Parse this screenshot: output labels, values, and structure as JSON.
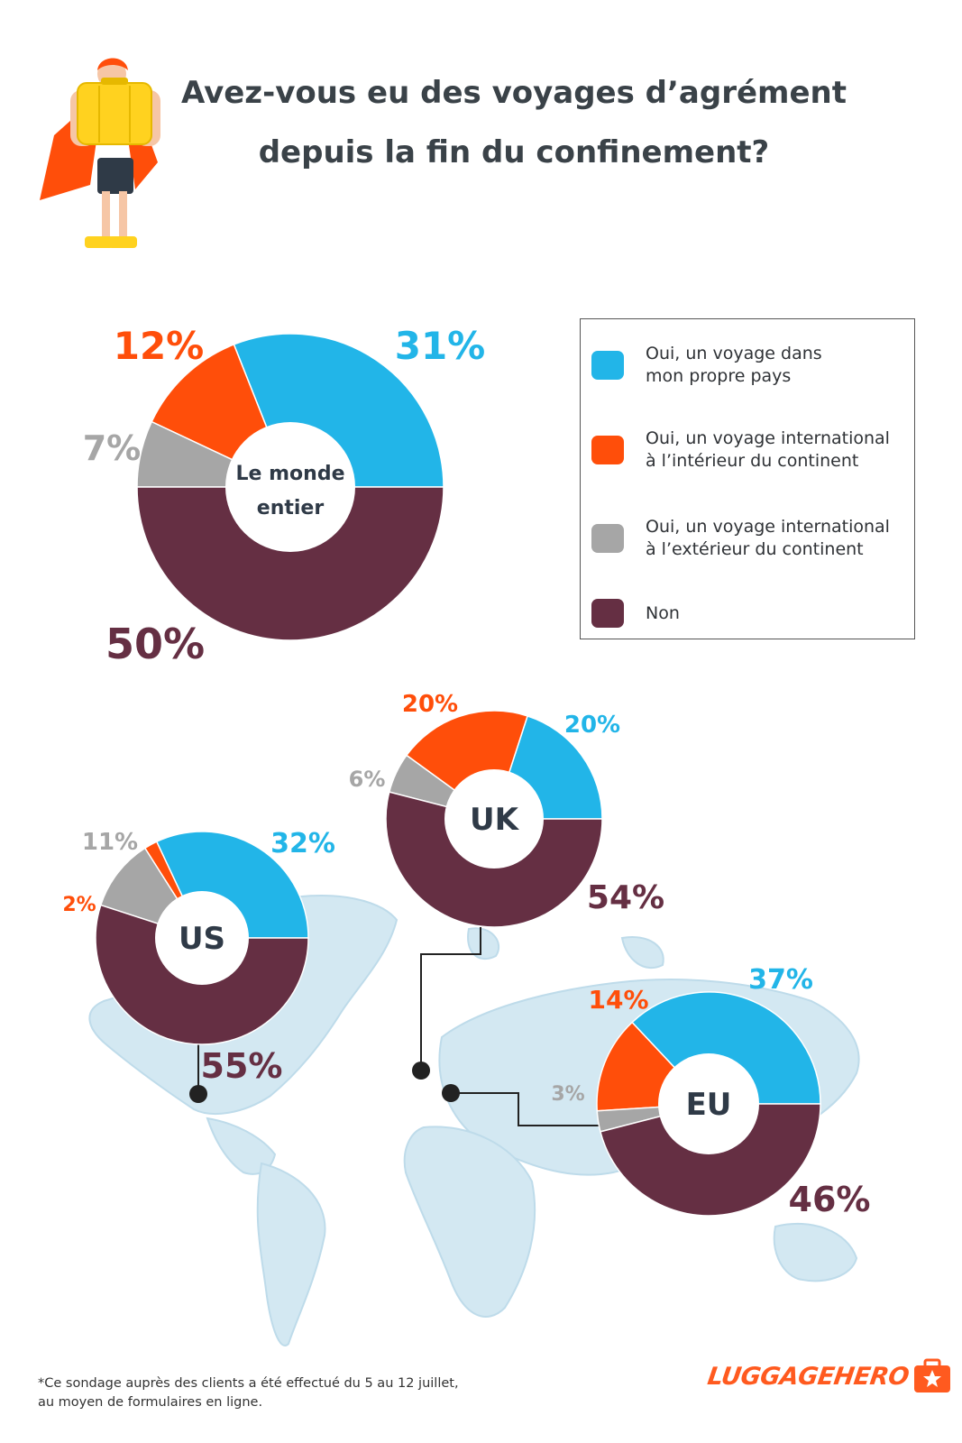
{
  "title": {
    "line1": "Avez-vous eu des voyages d’agrément",
    "line2": "depuis la fin du confinement?"
  },
  "legend": [
    {
      "label": "Oui, un voyage dans\nmon propre pays",
      "color": "#22b5e8"
    },
    {
      "label": "Oui, un voyage international\nà l’intérieur du continent",
      "color": "#ff4e0a"
    },
    {
      "label": "Oui, un voyage international\nà l’extérieur du continent",
      "color": "#a6a6a6"
    },
    {
      "label": "Non",
      "color": "#652f43"
    }
  ],
  "chart_data": [
    {
      "type": "pie",
      "label": "Le monde entier",
      "categories": [
        "Oui, un voyage dans mon propre pays",
        "Oui, un voyage international à l’intérieur du continent",
        "Oui, un voyage international à l’extérieur du continent",
        "Non"
      ],
      "values": [
        31,
        12,
        7,
        50
      ]
    },
    {
      "type": "pie",
      "label": "UK",
      "categories": [
        "Oui, un voyage dans mon propre pays",
        "Oui, un voyage international à l’intérieur du continent",
        "Oui, un voyage international à l’extérieur du continent",
        "Non"
      ],
      "values": [
        20,
        20,
        6,
        54
      ]
    },
    {
      "type": "pie",
      "label": "US",
      "categories": [
        "Oui, un voyage dans mon propre pays",
        "Oui, un voyage international à l’intérieur du continent",
        "Oui, un voyage international à l’extérieur du continent",
        "Non"
      ],
      "values": [
        32,
        2,
        11,
        55
      ]
    },
    {
      "type": "pie",
      "label": "EU",
      "categories": [
        "Oui, un voyage dans mon propre pays",
        "Oui, un voyage international à l’intérieur du continent",
        "Oui, un voyage international à l’extérieur du continent",
        "Non"
      ],
      "values": [
        37,
        14,
        3,
        46
      ]
    }
  ],
  "footnote": "*Ce sondage auprès des clients a été effectué du 5 au 12 juillet,\nau moyen de formulaires en ligne.",
  "brand": "LUGGAGEHERO"
}
